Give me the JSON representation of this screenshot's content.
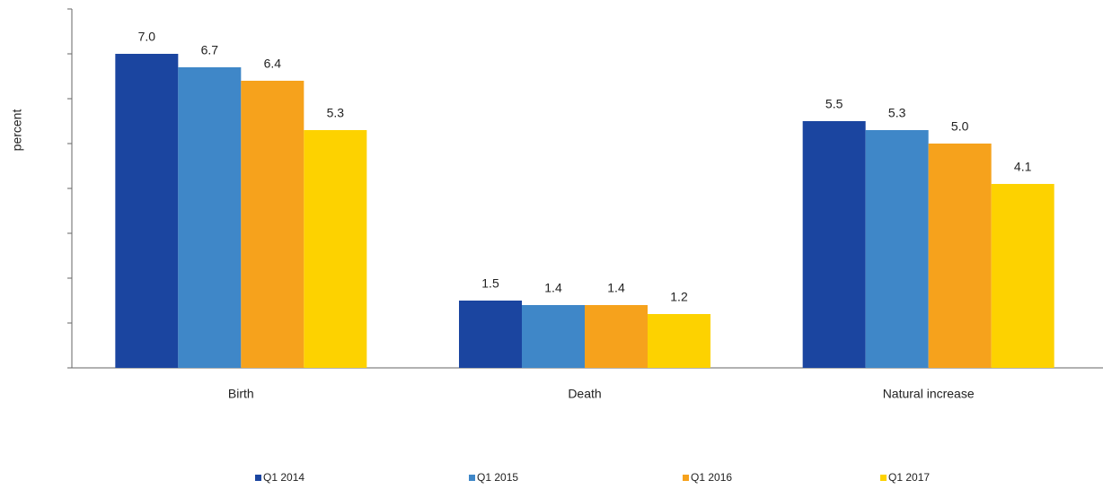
{
  "chart_data": {
    "type": "bar",
    "y_label": "percent",
    "categories": [
      "Birth",
      "Death",
      "Natural increase"
    ],
    "series": [
      {
        "name": "Q1 2014",
        "color": "#1b45a0",
        "values": [
          7.0,
          1.5,
          5.5
        ],
        "value_labels": [
          "7.0",
          "1.5",
          "5.5"
        ]
      },
      {
        "name": "Q1 2015",
        "color": "#3f87c8",
        "values": [
          6.7,
          1.4,
          5.3
        ],
        "value_labels": [
          "6.7",
          "1.4",
          "5.3"
        ]
      },
      {
        "name": "Q1 2016",
        "color": "#f6a21c",
        "values": [
          6.4,
          1.4,
          5.0
        ],
        "value_labels": [
          "6.4",
          "1.4",
          "5.0"
        ]
      },
      {
        "name": "Q1 2017",
        "color": "#fdd200",
        "values": [
          5.3,
          1.2,
          4.1
        ],
        "value_labels": [
          "5.3",
          "1.2",
          "4.1"
        ]
      }
    ],
    "ylim": [
      0,
      8
    ],
    "yticks": [
      0,
      1,
      2,
      3,
      4,
      5,
      6,
      7,
      8
    ],
    "legend": "bottom"
  }
}
